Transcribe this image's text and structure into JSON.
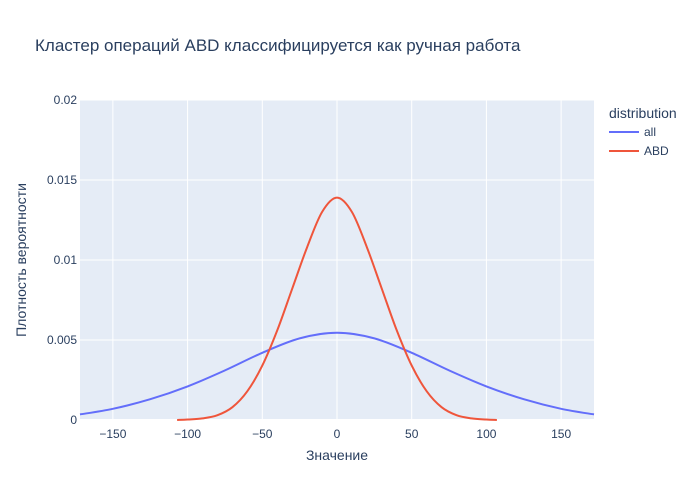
{
  "chart_data": {
    "type": "line",
    "title": "Кластер операций ABD классифицируется как ручная работа",
    "xlabel": "Значение",
    "ylabel": "Плотность вероятности",
    "xlim": [
      -172,
      172
    ],
    "ylim": [
      0,
      0.02
    ],
    "x_ticks": [
      -150,
      -100,
      -50,
      0,
      50,
      100,
      150
    ],
    "x_tick_labels": [
      "−150",
      "−100",
      "−50",
      "0",
      "50",
      "100",
      "150"
    ],
    "y_ticks": [
      0,
      0.005,
      0.01,
      0.015,
      0.02
    ],
    "y_tick_labels": [
      "0",
      "0.005",
      "0.01",
      "0.015",
      "0.02"
    ],
    "grid": true,
    "legend": {
      "title": "distribution",
      "placement": "right"
    },
    "series": [
      {
        "name": "all",
        "color": "#636efa",
        "x": [
          -172,
          -150,
          -125,
          -100,
          -75,
          -50,
          -25,
          0,
          25,
          50,
          75,
          100,
          125,
          150,
          172
        ],
        "y": [
          0.00035,
          0.0007,
          0.0013,
          0.0021,
          0.0031,
          0.0042,
          0.0051,
          0.00545,
          0.0051,
          0.0042,
          0.0031,
          0.0021,
          0.0013,
          0.0007,
          0.00035
        ]
      },
      {
        "name": "ABD",
        "color": "#ef553b",
        "x": [
          -107,
          -100,
          -90,
          -80,
          -70,
          -60,
          -50,
          -40,
          -30,
          -20,
          -10,
          0,
          10,
          20,
          30,
          40,
          50,
          60,
          70,
          80,
          90,
          100,
          107
        ],
        "y": [
          0.0,
          3e-05,
          0.0001,
          0.0003,
          0.0008,
          0.0018,
          0.0034,
          0.0056,
          0.0082,
          0.0108,
          0.013,
          0.0139,
          0.013,
          0.0108,
          0.0082,
          0.0056,
          0.0034,
          0.0018,
          0.0008,
          0.0003,
          0.0001,
          3e-05,
          0.0
        ]
      }
    ]
  }
}
